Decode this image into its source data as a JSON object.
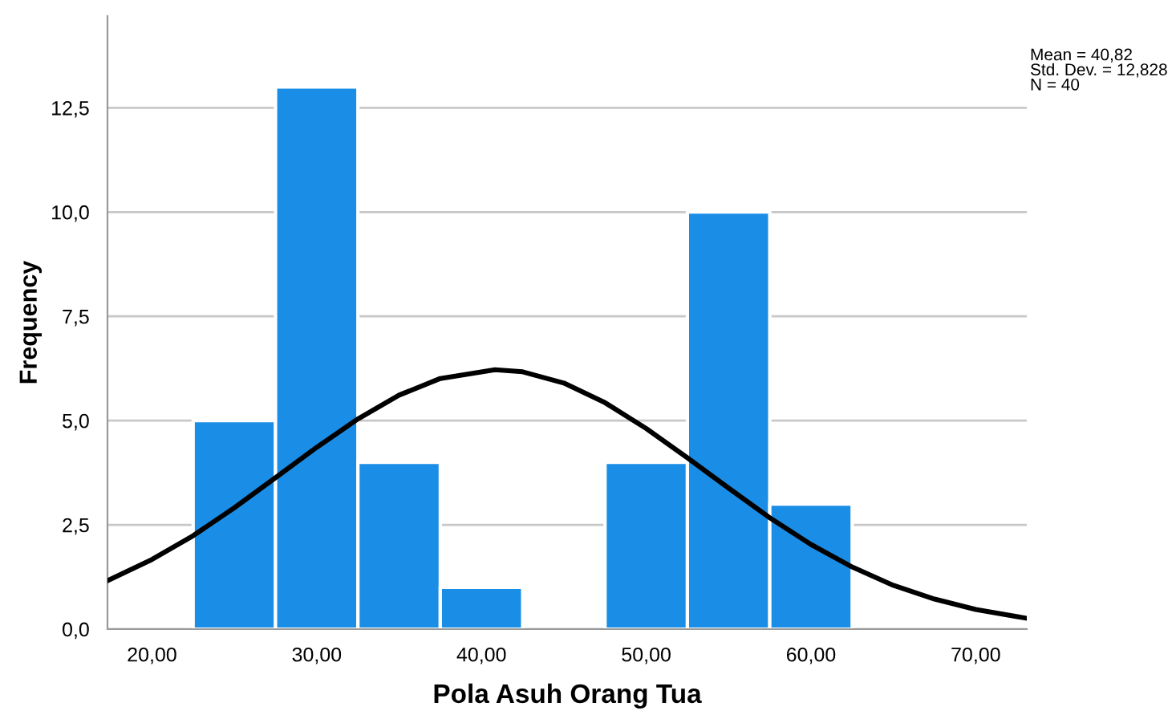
{
  "chart_data": {
    "type": "histogram",
    "xlabel": "Pola Asuh Orang Tua",
    "ylabel": "Frequency",
    "bins": [
      22.5,
      27.5,
      32.5,
      37.5,
      42.5,
      47.5,
      52.5,
      57.5,
      62.5
    ],
    "values": [
      5,
      13,
      4,
      1,
      0,
      4,
      10,
      3
    ],
    "color": "#1a8ee6",
    "series": [
      {
        "type": "line",
        "color": "#000000",
        "x": [
          17.3,
          20,
          22.5,
          25,
          27.5,
          30,
          32.5,
          35,
          37.5,
          40.82,
          42.5,
          45,
          47.5,
          50,
          52.5,
          55,
          57.5,
          60,
          62.5,
          65,
          67.5,
          70,
          73.1
        ],
        "values": [
          1.16,
          1.67,
          2.24,
          2.91,
          3.63,
          4.36,
          5.04,
          5.61,
          6.01,
          6.22,
          6.17,
          5.9,
          5.43,
          4.81,
          4.11,
          3.38,
          2.67,
          2.03,
          1.49,
          1.05,
          0.72,
          0.47,
          0.26
        ]
      }
    ],
    "xlim": [
      17.3,
      73.1
    ],
    "ylim": [
      0,
      14.7
    ],
    "xticks": [
      {
        "value": 20,
        "label": "20,00"
      },
      {
        "value": 30,
        "label": "30,00"
      },
      {
        "value": 40,
        "label": "40,00"
      },
      {
        "value": 50,
        "label": "50,00"
      },
      {
        "value": 60,
        "label": "60,00"
      },
      {
        "value": 70,
        "label": "70,00"
      }
    ],
    "yticks": [
      {
        "value": 0,
        "label": "0,0"
      },
      {
        "value": 2.5,
        "label": "2,5"
      },
      {
        "value": 5,
        "label": "5,0"
      },
      {
        "value": 7.5,
        "label": "7,5"
      },
      {
        "value": 10,
        "label": "10,0"
      },
      {
        "value": 12.5,
        "label": "12,5"
      }
    ],
    "grid": "y",
    "annotations": [
      "Mean = 40,82\nStd. Dev. = 12,828\nN = 40"
    ]
  }
}
